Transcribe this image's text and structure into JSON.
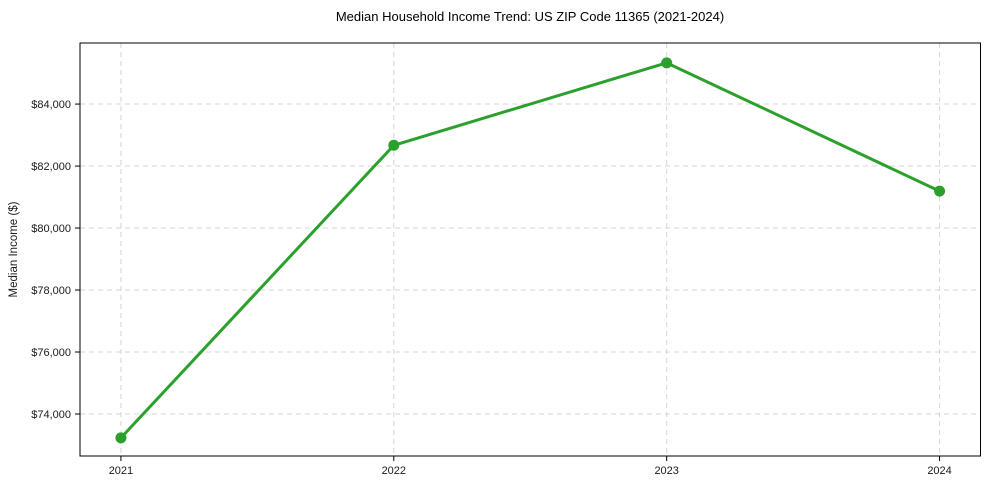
{
  "chart_data": {
    "type": "line",
    "title": "Median Household Income Trend: US ZIP Code 11365 (2021-2024)",
    "xlabel": "",
    "ylabel": "Median Income ($)",
    "x": [
      2021,
      2022,
      2023,
      2024
    ],
    "x_tick_labels": [
      "2021",
      "2022",
      "2023",
      "2024"
    ],
    "series": [
      {
        "name": "Median household income",
        "values": [
          73230,
          82670,
          85330,
          81190
        ]
      }
    ],
    "y_ticks": [
      {
        "value": 74000,
        "label": "$74,000"
      },
      {
        "value": 76000,
        "label": "$76,000"
      },
      {
        "value": 78000,
        "label": "$78,000"
      },
      {
        "value": 80000,
        "label": "$80,000"
      },
      {
        "value": 82000,
        "label": "$82,000"
      },
      {
        "value": 84000,
        "label": "$84,000"
      }
    ],
    "xlim": [
      2020.85,
      2024.15
    ],
    "ylim": [
      72645,
      85970
    ],
    "grid": "dashed-both-axes",
    "legend": "none",
    "line_color": "#2ca02c",
    "marker": "circle",
    "grid_color": "#d5d5d5",
    "axis_color": "#000000",
    "text_color": "#1a1a1a",
    "background": "#ffffff"
  }
}
